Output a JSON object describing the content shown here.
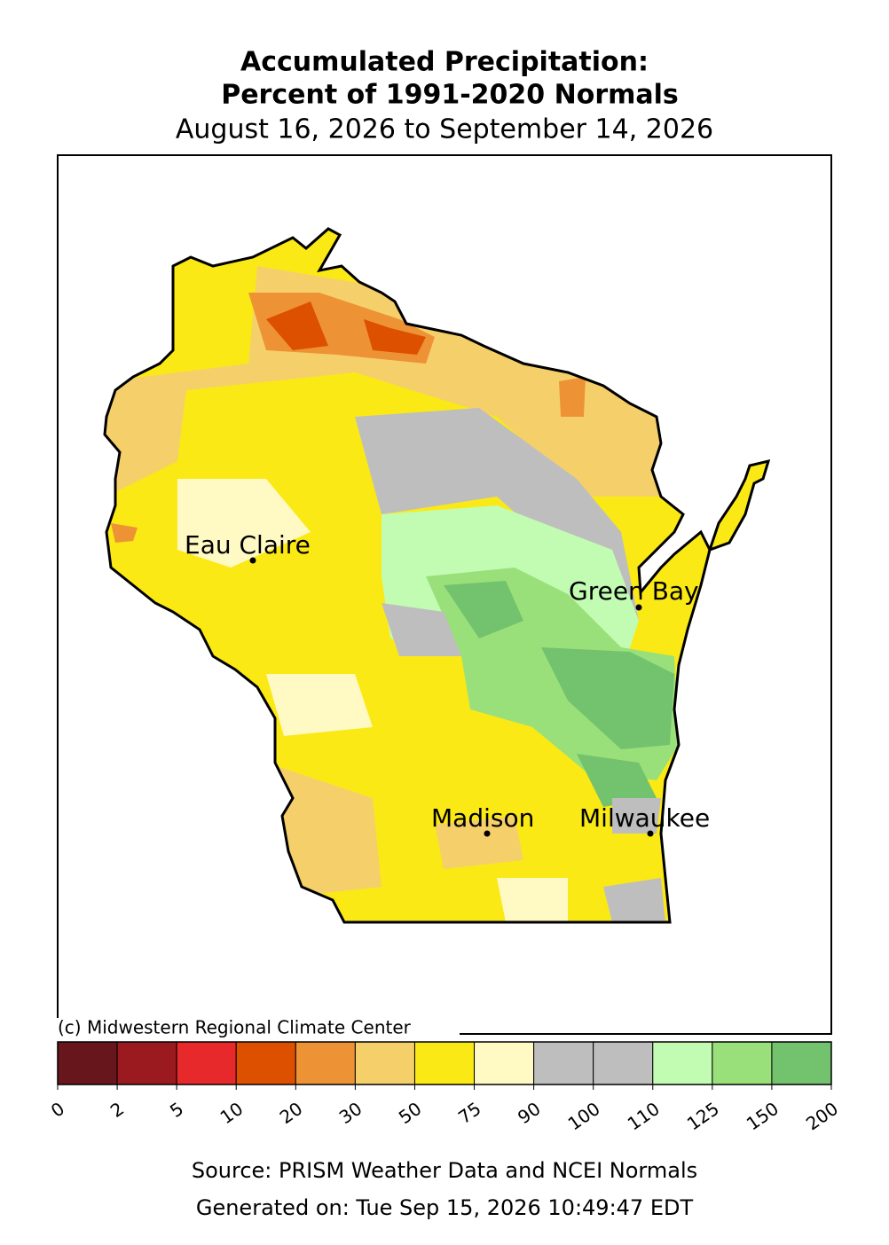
{
  "title": [
    "Accumulated Precipitation:",
    "Percent of 1991-2020 Normals"
  ],
  "subtitle": "August 16, 2026 to September 14, 2026",
  "cities": [
    "Eau Claire",
    "Green Bay",
    "Madison",
    "Milwaukee"
  ],
  "credit": "(c) Midwestern Regional Climate Center",
  "colorbar": {
    "bounds": [
      0,
      2,
      5,
      10,
      20,
      30,
      50,
      75,
      90,
      100,
      110,
      125,
      150,
      200
    ],
    "colors": [
      "#67161b",
      "#9b1a1f",
      "#e8292b",
      "#dd5000",
      "#ee9236",
      "#f5d06a",
      "#fbe915",
      "#fff9c4",
      "#bebebe",
      "#bebebe",
      "#c2fcb3",
      "#9ae07a",
      "#73c26d"
    ]
  },
  "source": "Source: PRISM Weather Data and NCEI Normals",
  "generated": "Generated on: Tue Sep 15, 2026 10:49:47 EDT"
}
